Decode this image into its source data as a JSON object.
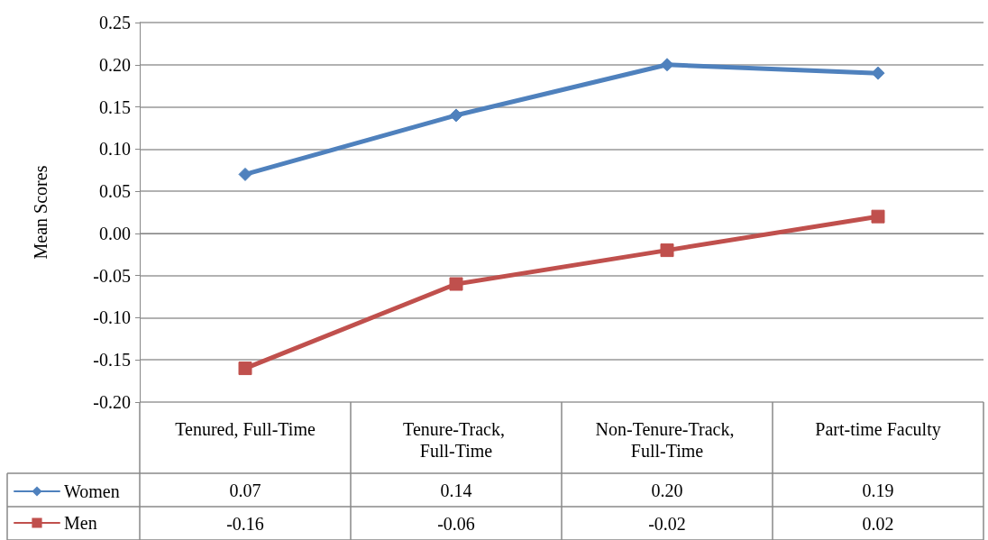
{
  "chart_data": {
    "type": "line",
    "ylabel": "Mean Scores",
    "categories": [
      "Tenured, Full-Time",
      "Tenure-Track, Full-Time",
      "Non-Tenure-Track, Full-Time",
      "Part-time Faculty"
    ],
    "series": [
      {
        "name": "Women",
        "color": "#4f81bd",
        "marker": "diamond",
        "values": [
          0.07,
          0.14,
          0.2,
          0.19
        ],
        "value_labels": [
          "0.07",
          "0.14",
          "0.20",
          "0.19"
        ]
      },
      {
        "name": "Men",
        "color": "#c0504d",
        "marker": "square",
        "values": [
          -0.16,
          -0.06,
          -0.02,
          0.02
        ],
        "value_labels": [
          "-0.16",
          "-0.06",
          "-0.02",
          "0.02"
        ]
      }
    ],
    "ylim": [
      -0.2,
      0.25
    ],
    "yticks": [
      {
        "value": -0.2,
        "label": "-0.20"
      },
      {
        "value": -0.15,
        "label": "-0.15"
      },
      {
        "value": -0.1,
        "label": "-0.10"
      },
      {
        "value": -0.05,
        "label": "-0.05"
      },
      {
        "value": 0,
        "label": "0.00"
      },
      {
        "value": 0.05,
        "label": "0.05"
      },
      {
        "value": 0.1,
        "label": "0.10"
      },
      {
        "value": 0.15,
        "label": "0.15"
      },
      {
        "value": 0.2,
        "label": "0.20"
      },
      {
        "value": 0.25,
        "label": "0.25"
      }
    ],
    "grid": "y",
    "legend": "bottom left",
    "line_style": "solid"
  }
}
